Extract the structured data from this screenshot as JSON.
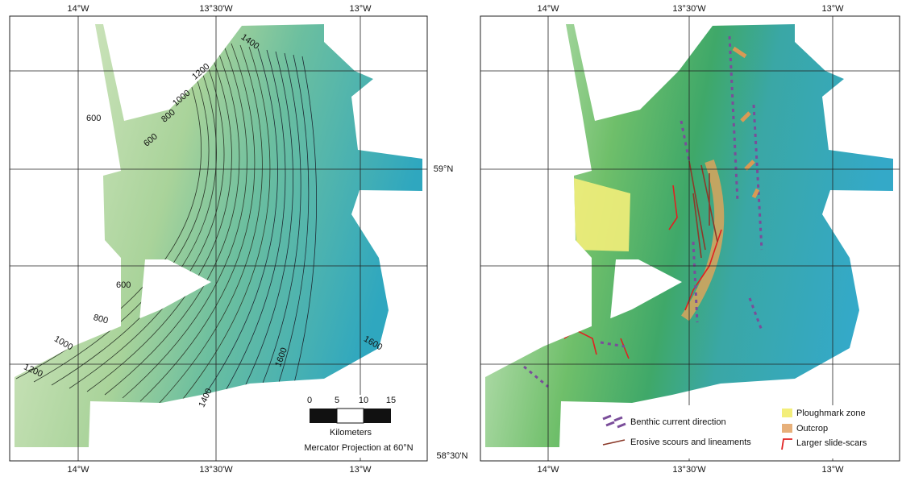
{
  "panels": [
    {
      "top_labels": [
        "14°W",
        "13°30'W",
        "13°W"
      ],
      "bottom_labels": [
        "14°W",
        "13°30'W",
        "13°W"
      ],
      "contour_labels": [
        "1400",
        "1200",
        "1000",
        "800",
        "600",
        "600",
        "600",
        "800",
        "1000",
        "1200",
        "1400",
        "1600",
        "1600"
      ]
    },
    {
      "top_labels": [
        "14°W",
        "13°30'W",
        "13°W"
      ],
      "bottom_labels": [
        "14°W",
        "13°30'W",
        "13°W"
      ]
    }
  ],
  "latitude_labels": [
    "59°N",
    "58°30'N"
  ],
  "scale_bar": {
    "ticks": [
      "0",
      "5",
      "10",
      "15"
    ],
    "unit": "Kilometers",
    "projection": "Mercator Projection at 60°N"
  },
  "legend": [
    "Benthic current direction",
    "Erosive scours and lineaments",
    "Ploughmark zone",
    "Outcrop",
    "Larger slide-scars"
  ]
}
